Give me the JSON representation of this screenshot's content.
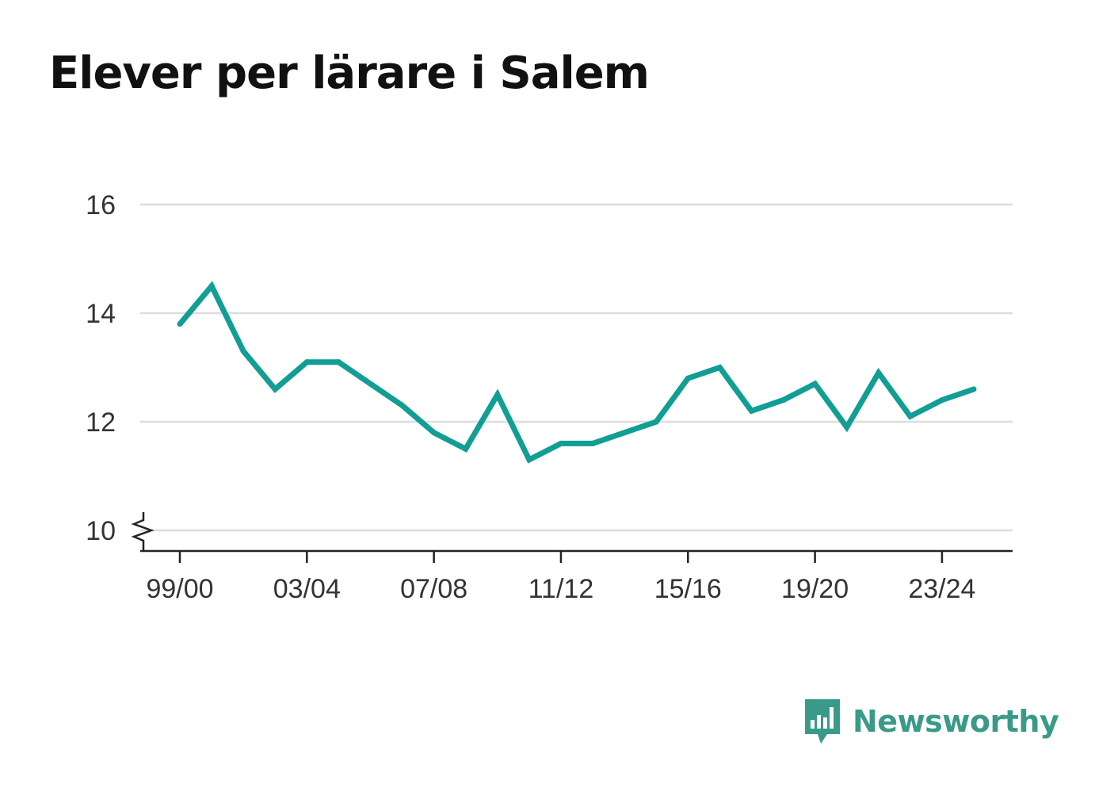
{
  "title": "Elever per lärare i Salem",
  "brand": {
    "name": "Newsworthy",
    "icon": "newsworthy-logo-icon",
    "color": "#3a9a8a"
  },
  "chart_data": {
    "type": "line",
    "title": "Elever per lärare i Salem",
    "xlabel": "",
    "ylabel": "",
    "x": [
      "99/00",
      "00/01",
      "01/02",
      "02/03",
      "03/04",
      "04/05",
      "05/06",
      "06/07",
      "07/08",
      "08/09",
      "09/10",
      "10/11",
      "11/12",
      "12/13",
      "13/14",
      "14/15",
      "15/16",
      "16/17",
      "17/18",
      "18/19",
      "19/20",
      "20/21",
      "21/22",
      "22/23",
      "23/24",
      "24/25"
    ],
    "series": [
      {
        "values": [
          13.8,
          14.5,
          13.3,
          12.6,
          13.1,
          13.1,
          12.7,
          12.3,
          11.8,
          11.5,
          12.5,
          11.3,
          11.6,
          11.6,
          11.8,
          12.0,
          12.8,
          13.0,
          12.2,
          12.4,
          12.7,
          11.9,
          12.9,
          12.1,
          12.4,
          12.6
        ],
        "color": "#119e94"
      }
    ],
    "x_tick_labels": [
      "99/00",
      "03/04",
      "07/08",
      "11/12",
      "15/16",
      "19/20",
      "23/24"
    ],
    "y_ticks": [
      "10",
      "12",
      "14",
      "16"
    ],
    "ylim": [
      10,
      16
    ],
    "y_axis_break": true,
    "grid": true,
    "legend": "none"
  }
}
